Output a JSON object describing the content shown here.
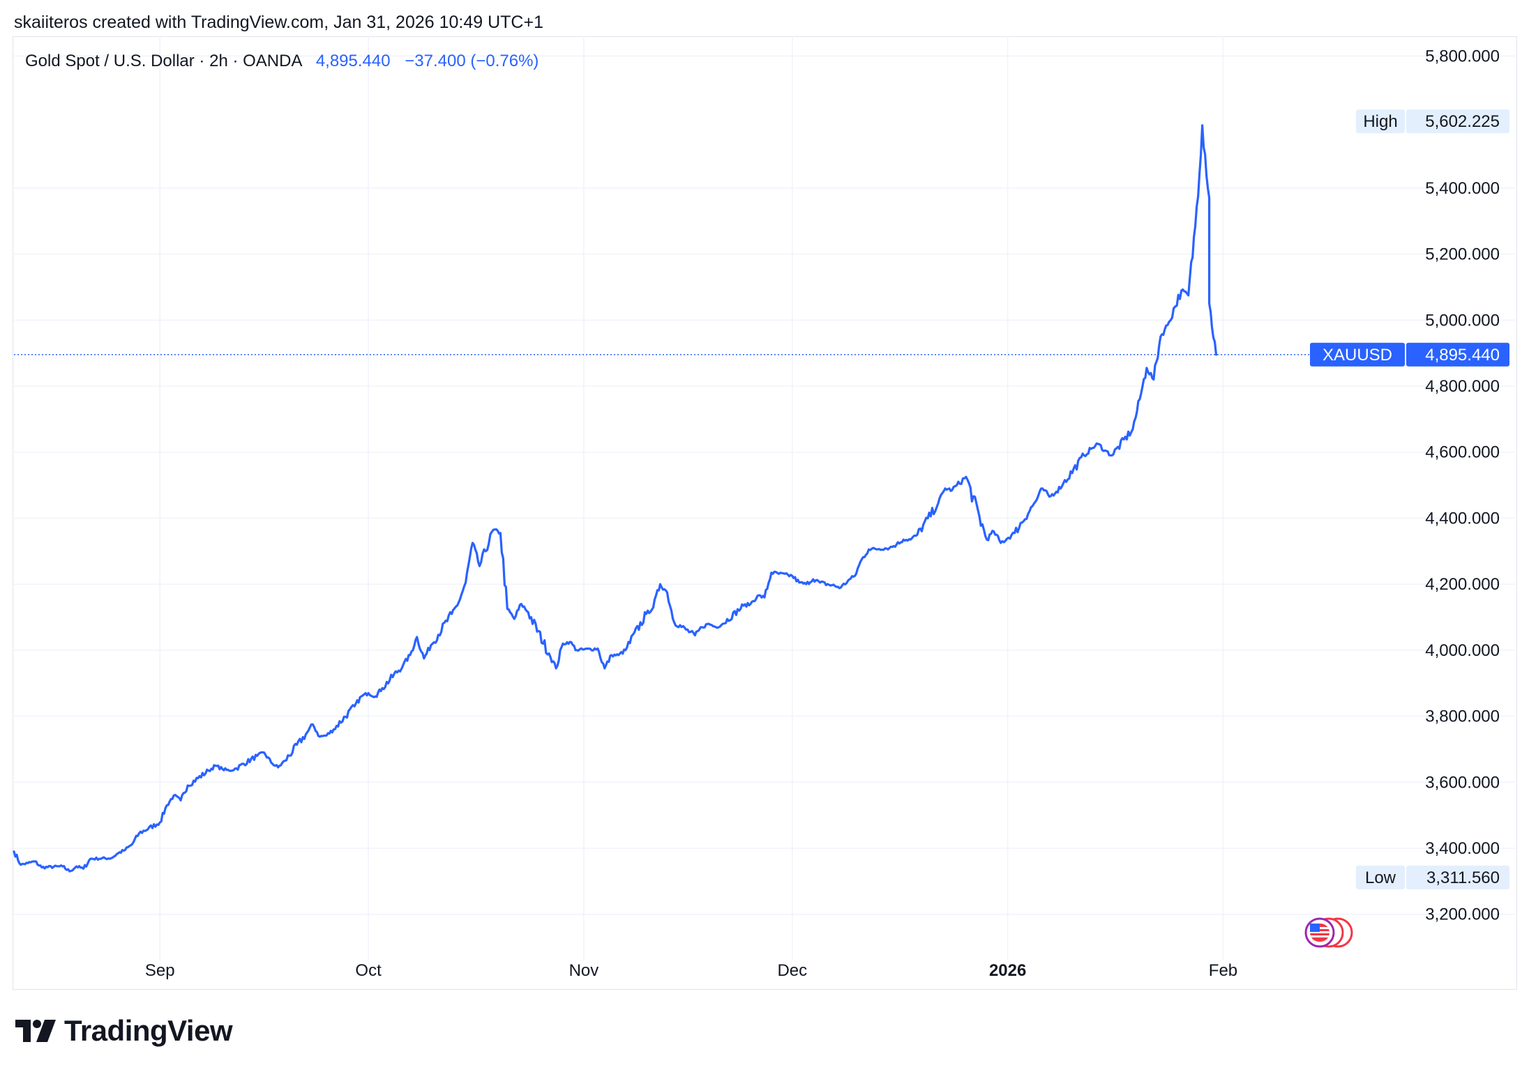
{
  "header": {
    "created_text": "skaiiteros created with TradingView.com, Jan 31, 2026 10:49 UTC+1"
  },
  "legend": {
    "symbol": "Gold Spot / U.S. Dollar · 2h · OANDA",
    "last": "4,895.440",
    "change": "−37.400 (−0.76%)"
  },
  "footer": {
    "brand": "TradingView"
  },
  "colors": {
    "line": "#2962ff",
    "grid": "#f0f3fa",
    "label_bg": "#e3effd",
    "text": "#131722"
  },
  "chart_data": {
    "type": "line",
    "symbol": "XAUUSD",
    "interval": "2h",
    "x_labels": [
      {
        "label": "Sep",
        "date": "2025-09-01"
      },
      {
        "label": "Oct",
        "date": "2025-10-01"
      },
      {
        "label": "Nov",
        "date": "2025-11-01"
      },
      {
        "label": "Dec",
        "date": "2025-12-01"
      },
      {
        "label": "2026",
        "date": "2026-01-01",
        "bold": true
      },
      {
        "label": "Feb",
        "date": "2026-02-01"
      }
    ],
    "y_ticks": [
      "5,800.000",
      "5,400.000",
      "5,200.000",
      "5,000.000",
      "4,800.000",
      "4,600.000",
      "4,400.000",
      "4,200.000",
      "4,000.000",
      "3,800.000",
      "3,600.000",
      "3,400.000",
      "3,200.000"
    ],
    "y_tick_values": [
      5800,
      5400,
      5200,
      5000,
      4800,
      4600,
      4400,
      4200,
      4000,
      3800,
      3600,
      3400,
      3200
    ],
    "ylim": [
      3060,
      5860
    ],
    "xlim": [
      "2025-08-11",
      "2026-02-14"
    ],
    "grid": true,
    "price_labels": [
      {
        "name": "High",
        "value_text": "5,602.225",
        "value": 5602.225,
        "style": "light"
      },
      {
        "name": "XAUUSD",
        "value_text": "4,895.440",
        "value": 4895.44,
        "style": "accent"
      },
      {
        "name": "Low",
        "value_text": "3,311.560",
        "value": 3311.56,
        "style": "light"
      }
    ],
    "series": [
      {
        "values": [
          [
            "2025-08-11",
            3390
          ],
          [
            "2025-08-12",
            3350
          ],
          [
            "2025-08-13",
            3355
          ],
          [
            "2025-08-14",
            3360
          ],
          [
            "2025-08-15",
            3342
          ],
          [
            "2025-08-18",
            3345
          ],
          [
            "2025-08-19",
            3330
          ],
          [
            "2025-08-20",
            3345
          ],
          [
            "2025-08-21",
            3338
          ],
          [
            "2025-08-22",
            3368
          ],
          [
            "2025-08-25",
            3370
          ],
          [
            "2025-08-26",
            3385
          ],
          [
            "2025-08-27",
            3395
          ],
          [
            "2025-08-28",
            3412
          ],
          [
            "2025-08-29",
            3445
          ],
          [
            "2025-09-01",
            3478
          ],
          [
            "2025-09-02",
            3530
          ],
          [
            "2025-09-03",
            3560
          ],
          [
            "2025-09-04",
            3545
          ],
          [
            "2025-09-05",
            3590
          ],
          [
            "2025-09-08",
            3635
          ],
          [
            "2025-09-09",
            3650
          ],
          [
            "2025-09-10",
            3640
          ],
          [
            "2025-09-11",
            3635
          ],
          [
            "2025-09-12",
            3642
          ],
          [
            "2025-09-15",
            3680
          ],
          [
            "2025-09-16",
            3690
          ],
          [
            "2025-09-17",
            3660
          ],
          [
            "2025-09-18",
            3645
          ],
          [
            "2025-09-19",
            3665
          ],
          [
            "2025-09-22",
            3745
          ],
          [
            "2025-09-23",
            3775
          ],
          [
            "2025-09-24",
            3738
          ],
          [
            "2025-09-25",
            3742
          ],
          [
            "2025-09-26",
            3760
          ],
          [
            "2025-09-29",
            3830
          ],
          [
            "2025-09-30",
            3860
          ],
          [
            "2025-10-01",
            3870
          ],
          [
            "2025-10-02",
            3860
          ],
          [
            "2025-10-03",
            3885
          ],
          [
            "2025-10-06",
            3955
          ],
          [
            "2025-10-07",
            3985
          ],
          [
            "2025-10-08",
            4040
          ],
          [
            "2025-10-09",
            3975
          ],
          [
            "2025-10-10",
            4015
          ],
          [
            "2025-10-13",
            4110
          ],
          [
            "2025-10-14",
            4145
          ],
          [
            "2025-10-15",
            4205
          ],
          [
            "2025-10-16",
            4325
          ],
          [
            "2025-10-17",
            4255
          ],
          [
            "2025-10-19",
            4365
          ],
          [
            "2025-10-20",
            4355
          ],
          [
            "2025-10-21",
            4125
          ],
          [
            "2025-10-22",
            4095
          ],
          [
            "2025-10-23",
            4140
          ],
          [
            "2025-10-24",
            4115
          ],
          [
            "2025-10-27",
            3990
          ],
          [
            "2025-10-28",
            3945
          ],
          [
            "2025-10-29",
            4020
          ],
          [
            "2025-10-30",
            4025
          ],
          [
            "2025-10-31",
            4000
          ],
          [
            "2025-11-03",
            4005
          ],
          [
            "2025-11-04",
            3945
          ],
          [
            "2025-11-05",
            3985
          ],
          [
            "2025-11-06",
            3985
          ],
          [
            "2025-11-07",
            4000
          ],
          [
            "2025-11-10",
            4110
          ],
          [
            "2025-11-11",
            4130
          ],
          [
            "2025-11-12",
            4200
          ],
          [
            "2025-11-13",
            4175
          ],
          [
            "2025-11-14",
            4085
          ],
          [
            "2025-11-17",
            4045
          ],
          [
            "2025-11-18",
            4070
          ],
          [
            "2025-11-19",
            4080
          ],
          [
            "2025-11-20",
            4070
          ],
          [
            "2025-11-21",
            4080
          ],
          [
            "2025-11-24",
            4135
          ],
          [
            "2025-11-25",
            4140
          ],
          [
            "2025-11-26",
            4165
          ],
          [
            "2025-11-27",
            4160
          ],
          [
            "2025-11-28",
            4235
          ],
          [
            "2025-12-01",
            4225
          ],
          [
            "2025-12-02",
            4205
          ],
          [
            "2025-12-03",
            4200
          ],
          [
            "2025-12-04",
            4215
          ],
          [
            "2025-12-05",
            4205
          ],
          [
            "2025-12-08",
            4190
          ],
          [
            "2025-12-09",
            4210
          ],
          [
            "2025-12-10",
            4225
          ],
          [
            "2025-12-11",
            4275
          ],
          [
            "2025-12-12",
            4305
          ],
          [
            "2025-12-15",
            4310
          ],
          [
            "2025-12-16",
            4320
          ],
          [
            "2025-12-17",
            4335
          ],
          [
            "2025-12-18",
            4335
          ],
          [
            "2025-12-19",
            4350
          ],
          [
            "2025-12-22",
            4445
          ],
          [
            "2025-12-23",
            4490
          ],
          [
            "2025-12-24",
            4485
          ],
          [
            "2025-12-26",
            4525
          ],
          [
            "2025-12-29",
            4335
          ],
          [
            "2025-12-30",
            4360
          ],
          [
            "2025-12-31",
            4325
          ],
          [
            "2026-01-02",
            4355
          ],
          [
            "2026-01-05",
            4450
          ],
          [
            "2026-01-06",
            4490
          ],
          [
            "2026-01-07",
            4465
          ],
          [
            "2026-01-08",
            4480
          ],
          [
            "2026-01-09",
            4505
          ],
          [
            "2026-01-12",
            4590
          ],
          [
            "2026-01-13",
            4610
          ],
          [
            "2026-01-14",
            4625
          ],
          [
            "2026-01-15",
            4605
          ],
          [
            "2026-01-16",
            4590
          ],
          [
            "2026-01-19",
            4670
          ],
          [
            "2026-01-20",
            4760
          ],
          [
            "2026-01-21",
            4855
          ],
          [
            "2026-01-22",
            4820
          ],
          [
            "2026-01-23",
            4950
          ],
          [
            "2026-01-24",
            4985
          ],
          [
            "2026-01-26",
            5090
          ],
          [
            "2026-01-27",
            5075
          ],
          [
            "2026-01-28",
            5285
          ],
          [
            "2026-01-29",
            5590
          ],
          [
            "2026-01-30",
            5370
          ],
          [
            "2026-01-30",
            5050
          ],
          [
            "2026-01-31",
            4895.44
          ]
        ]
      }
    ]
  }
}
